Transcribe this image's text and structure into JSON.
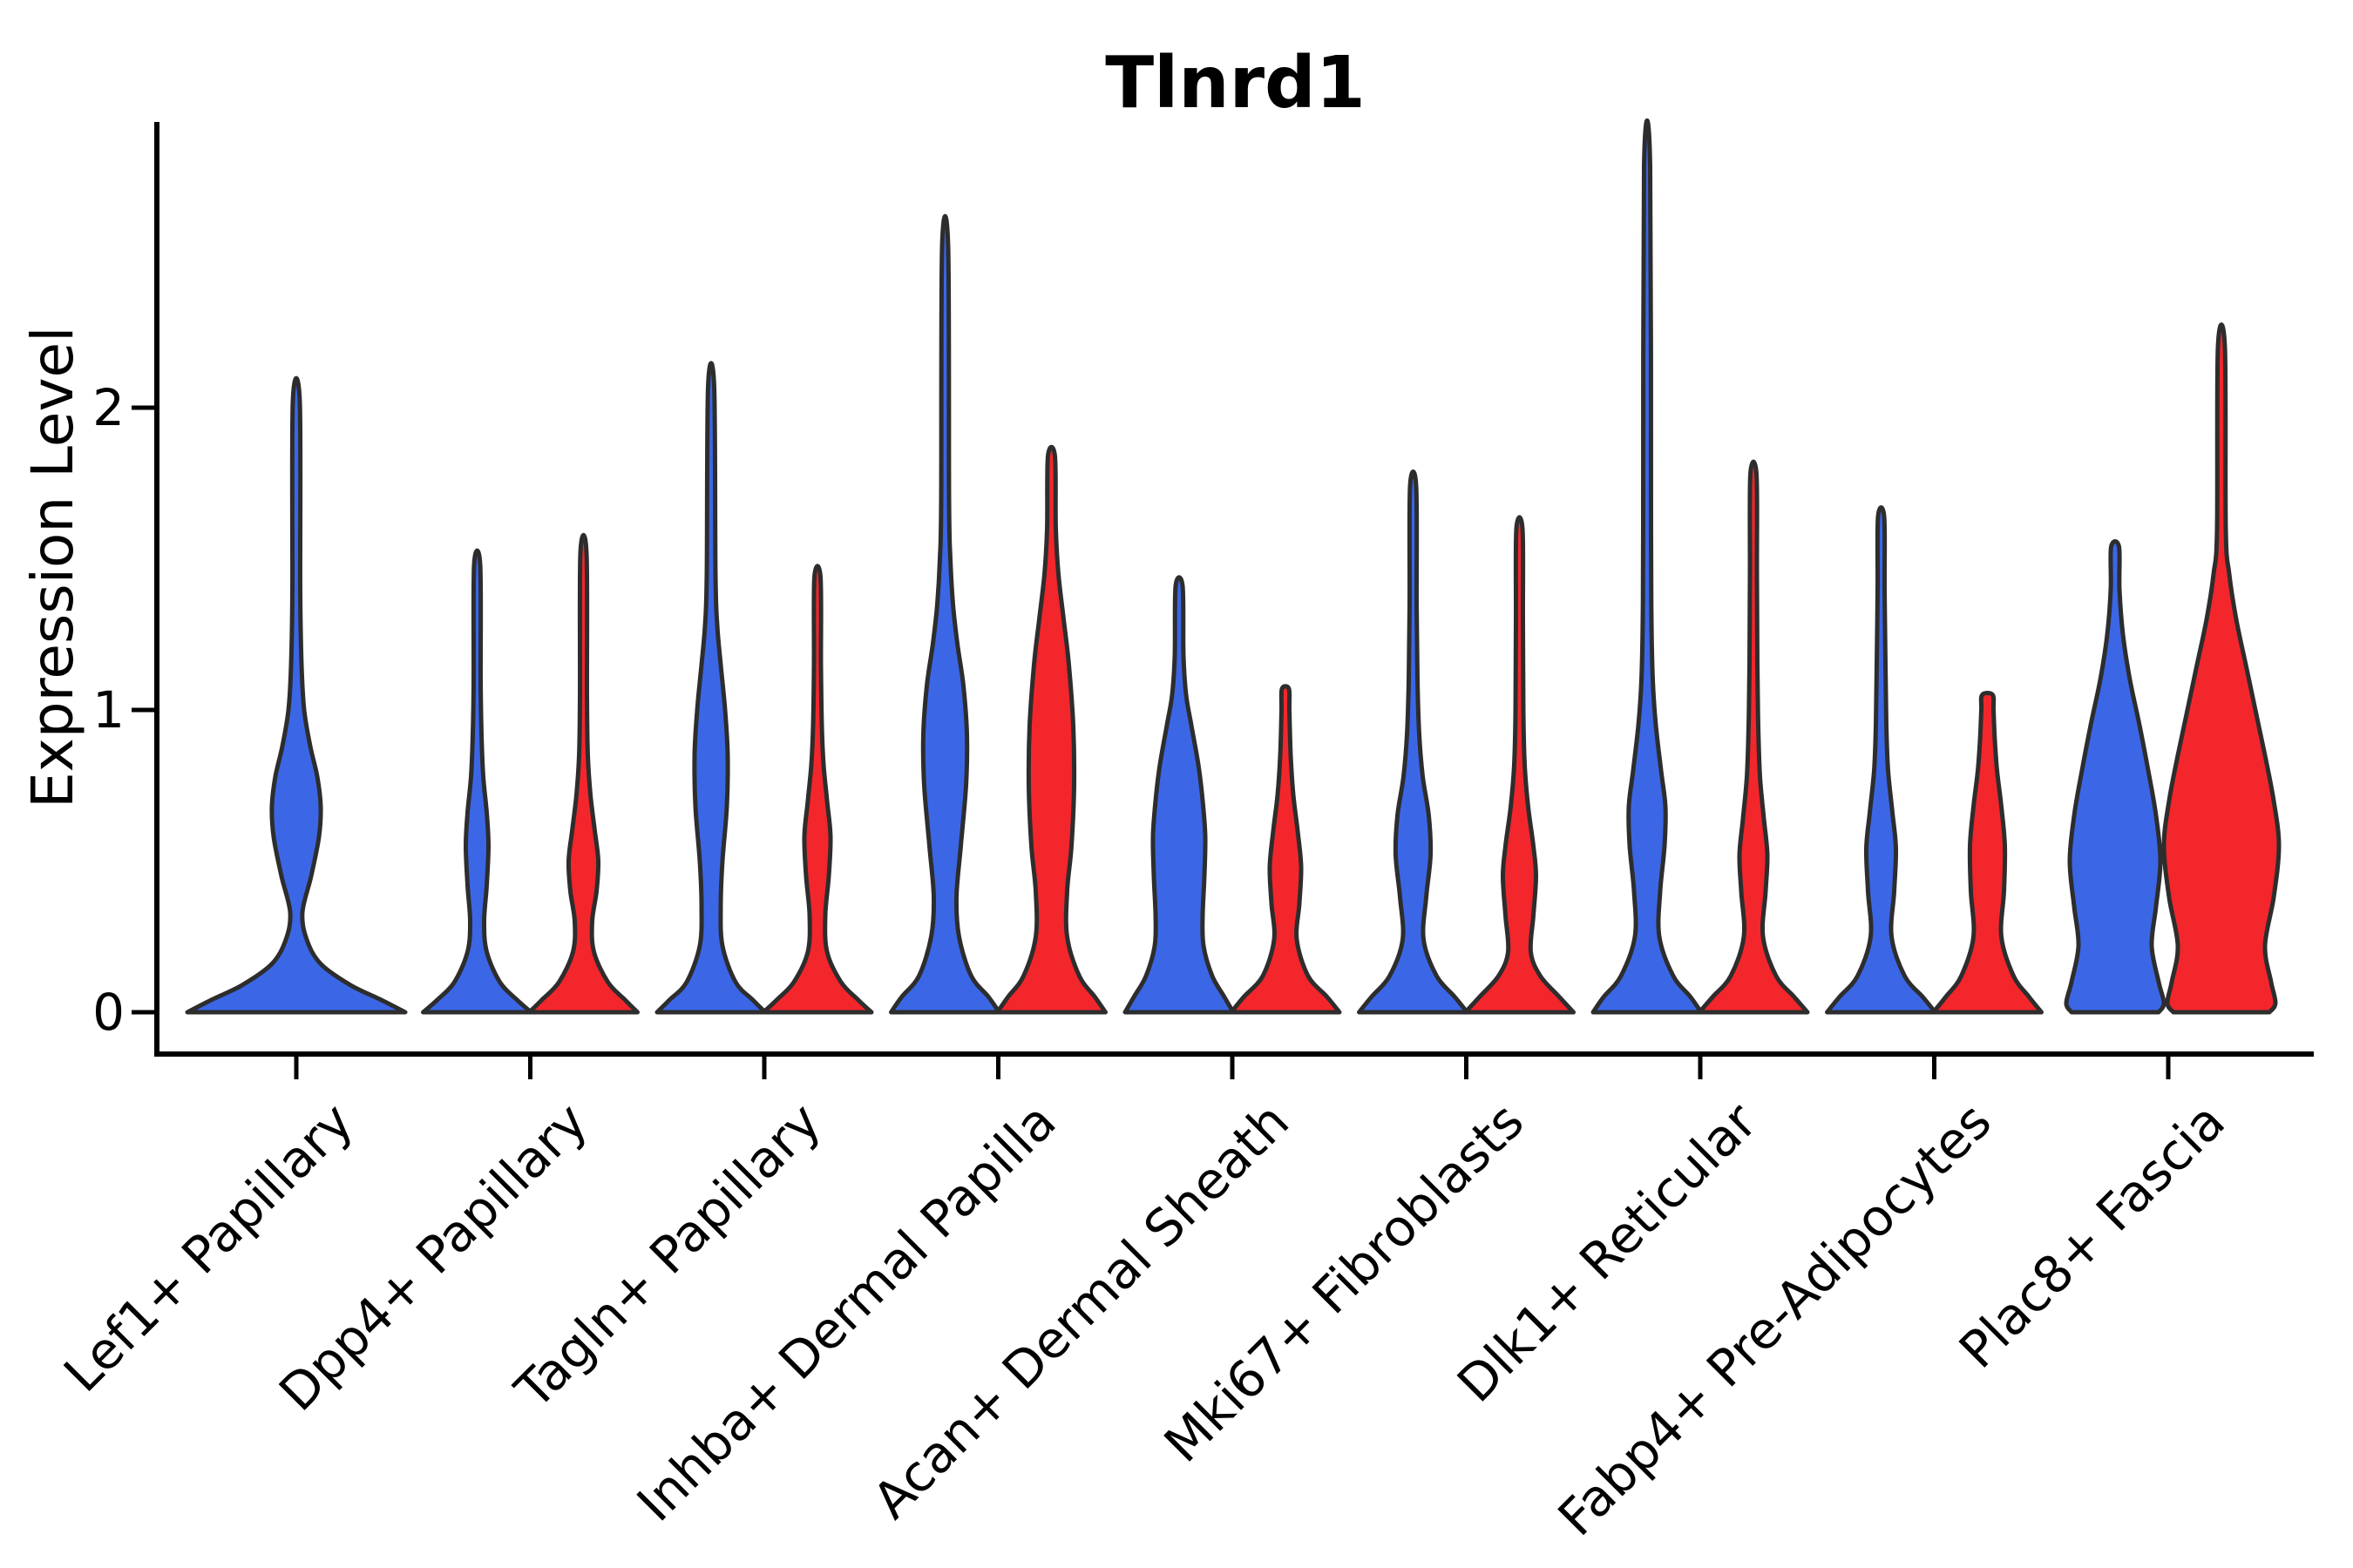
{
  "title": "Tlnrd1",
  "y_axis": {
    "label": "Expression Level",
    "ticks": [
      "0",
      "1",
      "2"
    ],
    "tick_values": [
      0,
      1,
      2
    ]
  },
  "categories": [
    "Lef1+ Papillary",
    "Dpp4+ Papillary",
    "Tagln+ Papillary",
    "Inhba+ Dermal Papilla",
    "Acan+ Dermal Sheath",
    "Mki67+ Fibroblasts",
    "Dlk1+ Reticular",
    "Fabp4+ Pre-Adipocytes",
    "Plac8+ Fascia"
  ],
  "colors": {
    "blue": "#3B67E7",
    "red": "#F3262C",
    "outline": "#2D2D2D",
    "axis": "#000000"
  },
  "chart_data": {
    "type": "violin",
    "title": "Tlnrd1",
    "xlabel": "",
    "ylabel": "Expression Level",
    "ylim": [
      0,
      2.95
    ],
    "yticks": [
      0,
      1,
      2
    ],
    "grid": false,
    "legend": "none",
    "categories": [
      "Lef1+ Papillary",
      "Dpp4+ Papillary",
      "Tagln+ Papillary",
      "Inhba+ Dermal Papilla",
      "Acan+ Dermal Sheath",
      "Mki67+ Fibroblasts",
      "Dlk1+ Reticular",
      "Fabp4+ Pre-Adipocytes",
      "Plac8+ Fascia"
    ],
    "series_colors": {
      "condition_1": "#3B67E7",
      "condition_2": "#F3262C"
    },
    "max_expression": {
      "condition_1": [
        2.02,
        1.48,
        2.07,
        2.53,
        1.41,
        1.74,
        2.8,
        1.64,
        1.54
      ],
      "condition_2": [
        null,
        1.52,
        1.44,
        1.84,
        1.07,
        1.6,
        1.78,
        1.05,
        2.2
      ]
    },
    "violins": [
      {
        "category": 0,
        "series": "condition_1",
        "single": true,
        "max": 2.02,
        "profile": [
          [
            0,
            125
          ],
          [
            0.04,
            98
          ],
          [
            0.09,
            62
          ],
          [
            0.16,
            28
          ],
          [
            0.24,
            12
          ],
          [
            0.33,
            7
          ],
          [
            0.45,
            17
          ],
          [
            0.58,
            26
          ],
          [
            0.68,
            28
          ],
          [
            0.78,
            24
          ],
          [
            0.88,
            16
          ],
          [
            1.0,
            9
          ],
          [
            1.15,
            6
          ],
          [
            1.4,
            4.5
          ],
          [
            2.02,
            4
          ]
        ]
      },
      {
        "category": 1,
        "series": "condition_1",
        "max": 1.48,
        "profile": [
          [
            0,
            62
          ],
          [
            0.04,
            46
          ],
          [
            0.1,
            26
          ],
          [
            0.2,
            11
          ],
          [
            0.3,
            8
          ],
          [
            0.42,
            11
          ],
          [
            0.55,
            13
          ],
          [
            0.66,
            11
          ],
          [
            0.78,
            7
          ],
          [
            0.92,
            5
          ],
          [
            1.1,
            4
          ],
          [
            1.48,
            3.5
          ]
        ]
      },
      {
        "category": 1,
        "series": "condition_2",
        "max": 1.52,
        "profile": [
          [
            0,
            62
          ],
          [
            0.04,
            48
          ],
          [
            0.1,
            28
          ],
          [
            0.2,
            12
          ],
          [
            0.3,
            10
          ],
          [
            0.4,
            15
          ],
          [
            0.5,
            17
          ],
          [
            0.6,
            13
          ],
          [
            0.72,
            8
          ],
          [
            0.85,
            5
          ],
          [
            1.05,
            4
          ],
          [
            1.52,
            3.5
          ]
        ]
      },
      {
        "category": 2,
        "series": "condition_1",
        "max": 2.07,
        "profile": [
          [
            0,
            62
          ],
          [
            0.04,
            48
          ],
          [
            0.1,
            28
          ],
          [
            0.22,
            13
          ],
          [
            0.35,
            11
          ],
          [
            0.5,
            13
          ],
          [
            0.68,
            18
          ],
          [
            0.85,
            19
          ],
          [
            1.0,
            16
          ],
          [
            1.15,
            11
          ],
          [
            1.28,
            7
          ],
          [
            1.45,
            5
          ],
          [
            2.07,
            3.5
          ]
        ]
      },
      {
        "category": 2,
        "series": "condition_2",
        "max": 1.44,
        "profile": [
          [
            0,
            62
          ],
          [
            0.04,
            47
          ],
          [
            0.1,
            27
          ],
          [
            0.2,
            11
          ],
          [
            0.32,
            9
          ],
          [
            0.45,
            13
          ],
          [
            0.58,
            15
          ],
          [
            0.7,
            11
          ],
          [
            0.82,
            7
          ],
          [
            0.95,
            5
          ],
          [
            1.15,
            4
          ],
          [
            1.44,
            3.5
          ]
        ]
      },
      {
        "category": 3,
        "series": "condition_1",
        "max": 2.53,
        "profile": [
          [
            0,
            62
          ],
          [
            0.05,
            50
          ],
          [
            0.12,
            30
          ],
          [
            0.25,
            16
          ],
          [
            0.38,
            13
          ],
          [
            0.55,
            18
          ],
          [
            0.75,
            24
          ],
          [
            0.92,
            25
          ],
          [
            1.08,
            21
          ],
          [
            1.22,
            14
          ],
          [
            1.35,
            9
          ],
          [
            1.5,
            6
          ],
          [
            1.7,
            4.5
          ],
          [
            2.53,
            3.5
          ]
        ]
      },
      {
        "category": 3,
        "series": "condition_2",
        "max": 1.84,
        "profile": [
          [
            0,
            62
          ],
          [
            0.05,
            50
          ],
          [
            0.12,
            32
          ],
          [
            0.25,
            18
          ],
          [
            0.4,
            18
          ],
          [
            0.55,
            23
          ],
          [
            0.75,
            26
          ],
          [
            0.95,
            25
          ],
          [
            1.15,
            20
          ],
          [
            1.3,
            14
          ],
          [
            1.45,
            8
          ],
          [
            1.6,
            5
          ],
          [
            1.84,
            4
          ]
        ]
      },
      {
        "category": 4,
        "series": "condition_1",
        "max": 1.41,
        "profile": [
          [
            0,
            62
          ],
          [
            0.05,
            52
          ],
          [
            0.12,
            38
          ],
          [
            0.22,
            28
          ],
          [
            0.32,
            27
          ],
          [
            0.45,
            29
          ],
          [
            0.58,
            30
          ],
          [
            0.7,
            27
          ],
          [
            0.82,
            22
          ],
          [
            0.95,
            14
          ],
          [
            1.05,
            8
          ],
          [
            1.18,
            5
          ],
          [
            1.41,
            4
          ]
        ]
      },
      {
        "category": 4,
        "series": "condition_2",
        "max": 1.07,
        "profile": [
          [
            0,
            62
          ],
          [
            0.05,
            48
          ],
          [
            0.12,
            26
          ],
          [
            0.24,
            13
          ],
          [
            0.36,
            16
          ],
          [
            0.48,
            18
          ],
          [
            0.6,
            14
          ],
          [
            0.72,
            9
          ],
          [
            0.85,
            6
          ],
          [
            1.0,
            4.5
          ],
          [
            1.07,
            4
          ]
        ]
      },
      {
        "category": 5,
        "series": "condition_1",
        "max": 1.74,
        "profile": [
          [
            0,
            62
          ],
          [
            0.05,
            48
          ],
          [
            0.12,
            27
          ],
          [
            0.24,
            12
          ],
          [
            0.38,
            15
          ],
          [
            0.52,
            20
          ],
          [
            0.65,
            18
          ],
          [
            0.78,
            11
          ],
          [
            0.92,
            7
          ],
          [
            1.1,
            5
          ],
          [
            1.35,
            4
          ],
          [
            1.74,
            3.5
          ]
        ]
      },
      {
        "category": 5,
        "series": "condition_2",
        "max": 1.6,
        "profile": [
          [
            0,
            62
          ],
          [
            0.05,
            46
          ],
          [
            0.12,
            24
          ],
          [
            0.2,
            13
          ],
          [
            0.32,
            16
          ],
          [
            0.45,
            19
          ],
          [
            0.55,
            16
          ],
          [
            0.68,
            10
          ],
          [
            0.82,
            6
          ],
          [
            1.0,
            4.5
          ],
          [
            1.3,
            4
          ],
          [
            1.6,
            3.5
          ]
        ]
      },
      {
        "category": 6,
        "series": "condition_1",
        "max": 2.8,
        "profile": [
          [
            0,
            62
          ],
          [
            0.05,
            50
          ],
          [
            0.12,
            30
          ],
          [
            0.25,
            14
          ],
          [
            0.4,
            15
          ],
          [
            0.55,
            20
          ],
          [
            0.68,
            21
          ],
          [
            0.8,
            16
          ],
          [
            0.95,
            10
          ],
          [
            1.1,
            6.5
          ],
          [
            1.3,
            5
          ],
          [
            1.6,
            4.5
          ],
          [
            2.8,
            3.5
          ]
        ]
      },
      {
        "category": 6,
        "series": "condition_2",
        "max": 1.78,
        "profile": [
          [
            0,
            62
          ],
          [
            0.05,
            47
          ],
          [
            0.12,
            26
          ],
          [
            0.25,
            11
          ],
          [
            0.4,
            14
          ],
          [
            0.52,
            16
          ],
          [
            0.64,
            12
          ],
          [
            0.78,
            7.5
          ],
          [
            0.95,
            5.5
          ],
          [
            1.15,
            4.5
          ],
          [
            1.45,
            4
          ],
          [
            1.78,
            3.5
          ]
        ]
      },
      {
        "category": 7,
        "series": "condition_1",
        "max": 1.64,
        "profile": [
          [
            0,
            62
          ],
          [
            0.05,
            48
          ],
          [
            0.12,
            27
          ],
          [
            0.25,
            12
          ],
          [
            0.4,
            15
          ],
          [
            0.54,
            17
          ],
          [
            0.66,
            13
          ],
          [
            0.8,
            8
          ],
          [
            0.95,
            6
          ],
          [
            1.15,
            5
          ],
          [
            1.4,
            4
          ],
          [
            1.64,
            3.5
          ]
        ]
      },
      {
        "category": 7,
        "series": "condition_2",
        "max": 1.05,
        "profile": [
          [
            0,
            62
          ],
          [
            0.05,
            48
          ],
          [
            0.12,
            30
          ],
          [
            0.25,
            16
          ],
          [
            0.4,
            19
          ],
          [
            0.55,
            20
          ],
          [
            0.68,
            16
          ],
          [
            0.8,
            11
          ],
          [
            0.9,
            8.5
          ],
          [
            1.0,
            7
          ],
          [
            1.05,
            6
          ]
        ]
      },
      {
        "category": 8,
        "series": "condition_1",
        "max": 1.54,
        "profile": [
          [
            0,
            50
          ],
          [
            0.03,
            56
          ],
          [
            0.1,
            50
          ],
          [
            0.22,
            42
          ],
          [
            0.35,
            47
          ],
          [
            0.5,
            52
          ],
          [
            0.65,
            47
          ],
          [
            0.8,
            38
          ],
          [
            0.95,
            28
          ],
          [
            1.1,
            17
          ],
          [
            1.25,
            9
          ],
          [
            1.4,
            5
          ],
          [
            1.54,
            4.5
          ]
        ]
      },
      {
        "category": 8,
        "series": "condition_2",
        "max": 2.2,
        "profile": [
          [
            0,
            55
          ],
          [
            0.03,
            62
          ],
          [
            0.1,
            57
          ],
          [
            0.22,
            50
          ],
          [
            0.38,
            60
          ],
          [
            0.55,
            66
          ],
          [
            0.7,
            60
          ],
          [
            0.85,
            50
          ],
          [
            1.0,
            39
          ],
          [
            1.15,
            28
          ],
          [
            1.3,
            17
          ],
          [
            1.45,
            9
          ],
          [
            1.6,
            5
          ],
          [
            2.2,
            4
          ]
        ]
      }
    ]
  }
}
